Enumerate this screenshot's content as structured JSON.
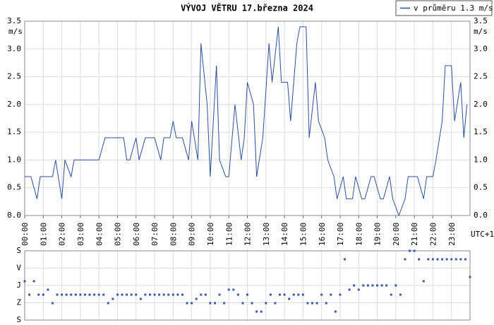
{
  "title": "VÝVOJ VĚTRU  17.března 2024",
  "legend": "v průměru 1.3 m/s",
  "chart_data": [
    {
      "type": "line",
      "y_label": "m/s",
      "x_label": "UTC+1",
      "xlim": [
        0,
        1440
      ],
      "xticks": [
        {
          "value": 0,
          "label": "00:00"
        },
        {
          "value": 60,
          "label": "01:00"
        },
        {
          "value": 120,
          "label": "02:00"
        },
        {
          "value": 180,
          "label": "03:00"
        },
        {
          "value": 240,
          "label": "04:00"
        },
        {
          "value": 300,
          "label": "05:00"
        },
        {
          "value": 360,
          "label": "06:00"
        },
        {
          "value": 420,
          "label": "07:00"
        },
        {
          "value": 480,
          "label": "08:00"
        },
        {
          "value": 540,
          "label": "09:00"
        },
        {
          "value": 600,
          "label": "10:00"
        },
        {
          "value": 660,
          "label": "11:00"
        },
        {
          "value": 720,
          "label": "12:00"
        },
        {
          "value": 780,
          "label": "13:00"
        },
        {
          "value": 840,
          "label": "14:00"
        },
        {
          "value": 900,
          "label": "15:00"
        },
        {
          "value": 960,
          "label": "16:00"
        },
        {
          "value": 1020,
          "label": "17:00"
        },
        {
          "value": 1080,
          "label": "18:00"
        },
        {
          "value": 1140,
          "label": "19:00"
        },
        {
          "value": 1200,
          "label": "20:00"
        },
        {
          "value": 1260,
          "label": "21:00"
        },
        {
          "value": 1320,
          "label": "22:00"
        },
        {
          "value": 1380,
          "label": "23:00"
        }
      ],
      "ylim": [
        0,
        3.5
      ],
      "yticks": [
        {
          "value": 0,
          "label": "0.0"
        },
        {
          "value": 0.5,
          "label": "0.5"
        },
        {
          "value": 1,
          "label": "1.0"
        },
        {
          "value": 1.5,
          "label": "1.5"
        },
        {
          "value": 2,
          "label": "2.0"
        },
        {
          "value": 2.5,
          "label": "2.5"
        },
        {
          "value": 3,
          "label": "3.0"
        },
        {
          "value": 3.5,
          "label": "3.5"
        }
      ],
      "grid": true,
      "color": "#2b4f9e",
      "x": [
        0,
        20,
        40,
        50,
        90,
        100,
        120,
        130,
        150,
        160,
        240,
        260,
        320,
        330,
        340,
        360,
        370,
        390,
        420,
        440,
        450,
        470,
        480,
        490,
        510,
        530,
        540,
        560,
        570,
        590,
        600,
        620,
        630,
        650,
        660,
        680,
        700,
        710,
        720,
        740,
        750,
        770,
        790,
        800,
        820,
        830,
        850,
        860,
        880,
        890,
        910,
        920,
        940,
        950,
        970,
        980,
        1000,
        1010,
        1030,
        1040,
        1060,
        1070,
        1090,
        1100,
        1120,
        1130,
        1150,
        1160,
        1180,
        1190,
        1210,
        1230,
        1240,
        1270,
        1290,
        1300,
        1320,
        1330,
        1350,
        1360,
        1380,
        1390,
        1410,
        1420,
        1430
      ],
      "values": [
        0.7,
        0.7,
        0.3,
        0.7,
        0.7,
        1.0,
        0.3,
        1.0,
        0.7,
        1.0,
        1.0,
        1.4,
        1.4,
        1.0,
        1.0,
        1.4,
        1.0,
        1.4,
        1.4,
        1.0,
        1.4,
        1.4,
        1.7,
        1.4,
        1.4,
        1.0,
        1.7,
        1.0,
        3.1,
        2.0,
        0.7,
        2.7,
        1.0,
        0.7,
        0.7,
        2.0,
        1.0,
        1.4,
        2.4,
        2.0,
        0.7,
        1.4,
        3.1,
        2.4,
        3.4,
        2.4,
        2.4,
        1.7,
        3.1,
        3.4,
        3.4,
        1.4,
        2.4,
        1.7,
        1.4,
        1.0,
        0.7,
        0.3,
        0.7,
        0.3,
        0.3,
        0.7,
        0.3,
        0.3,
        0.7,
        0.7,
        0.3,
        0.3,
        0.7,
        0.3,
        0.0,
        0.3,
        0.7,
        0.7,
        0.3,
        0.7,
        0.7,
        1.0,
        1.7,
        2.7,
        2.7,
        1.7,
        2.4,
        1.4,
        2.0
      ]
    },
    {
      "type": "scatter",
      "color": "#3a5aa6",
      "xlim": [
        0,
        1440
      ],
      "ylim": [
        0,
        360
      ],
      "yticks": [
        {
          "value": 0,
          "label": "S"
        },
        {
          "value": 90,
          "label": "V"
        },
        {
          "value": 180,
          "label": "J"
        },
        {
          "value": 270,
          "label": "Z"
        },
        {
          "value": 360,
          "label": "S"
        }
      ],
      "x": [
        0,
        15,
        30,
        45,
        60,
        75,
        90,
        105,
        120,
        135,
        150,
        165,
        180,
        195,
        210,
        225,
        240,
        255,
        270,
        285,
        300,
        315,
        330,
        345,
        360,
        375,
        390,
        405,
        420,
        435,
        450,
        465,
        480,
        495,
        510,
        525,
        540,
        555,
        570,
        585,
        600,
        615,
        630,
        645,
        660,
        675,
        690,
        705,
        720,
        735,
        750,
        765,
        780,
        795,
        810,
        825,
        840,
        855,
        870,
        885,
        900,
        915,
        930,
        945,
        960,
        975,
        990,
        1005,
        1020,
        1035,
        1050,
        1065,
        1080,
        1095,
        1110,
        1125,
        1140,
        1155,
        1170,
        1185,
        1200,
        1215,
        1230,
        1245,
        1260,
        1275,
        1290,
        1305,
        1320,
        1335,
        1350,
        1365,
        1380,
        1395,
        1410,
        1425,
        1440
      ],
      "values": [
        158,
        228,
        158,
        228,
        228,
        202,
        272,
        228,
        228,
        228,
        228,
        228,
        228,
        228,
        228,
        228,
        228,
        228,
        272,
        250,
        228,
        228,
        228,
        228,
        228,
        250,
        228,
        228,
        228,
        228,
        228,
        228,
        228,
        228,
        228,
        272,
        272,
        250,
        228,
        228,
        272,
        272,
        228,
        272,
        202,
        202,
        228,
        272,
        228,
        272,
        316,
        316,
        272,
        228,
        272,
        228,
        228,
        250,
        228,
        228,
        228,
        272,
        272,
        272,
        228,
        272,
        228,
        316,
        228,
        44,
        202,
        180,
        202,
        180,
        180,
        180,
        180,
        180,
        180,
        228,
        180,
        228,
        44,
        0,
        0,
        44,
        158,
        44,
        44,
        44,
        44,
        44,
        44,
        44,
        44,
        44,
        136
      ]
    }
  ]
}
